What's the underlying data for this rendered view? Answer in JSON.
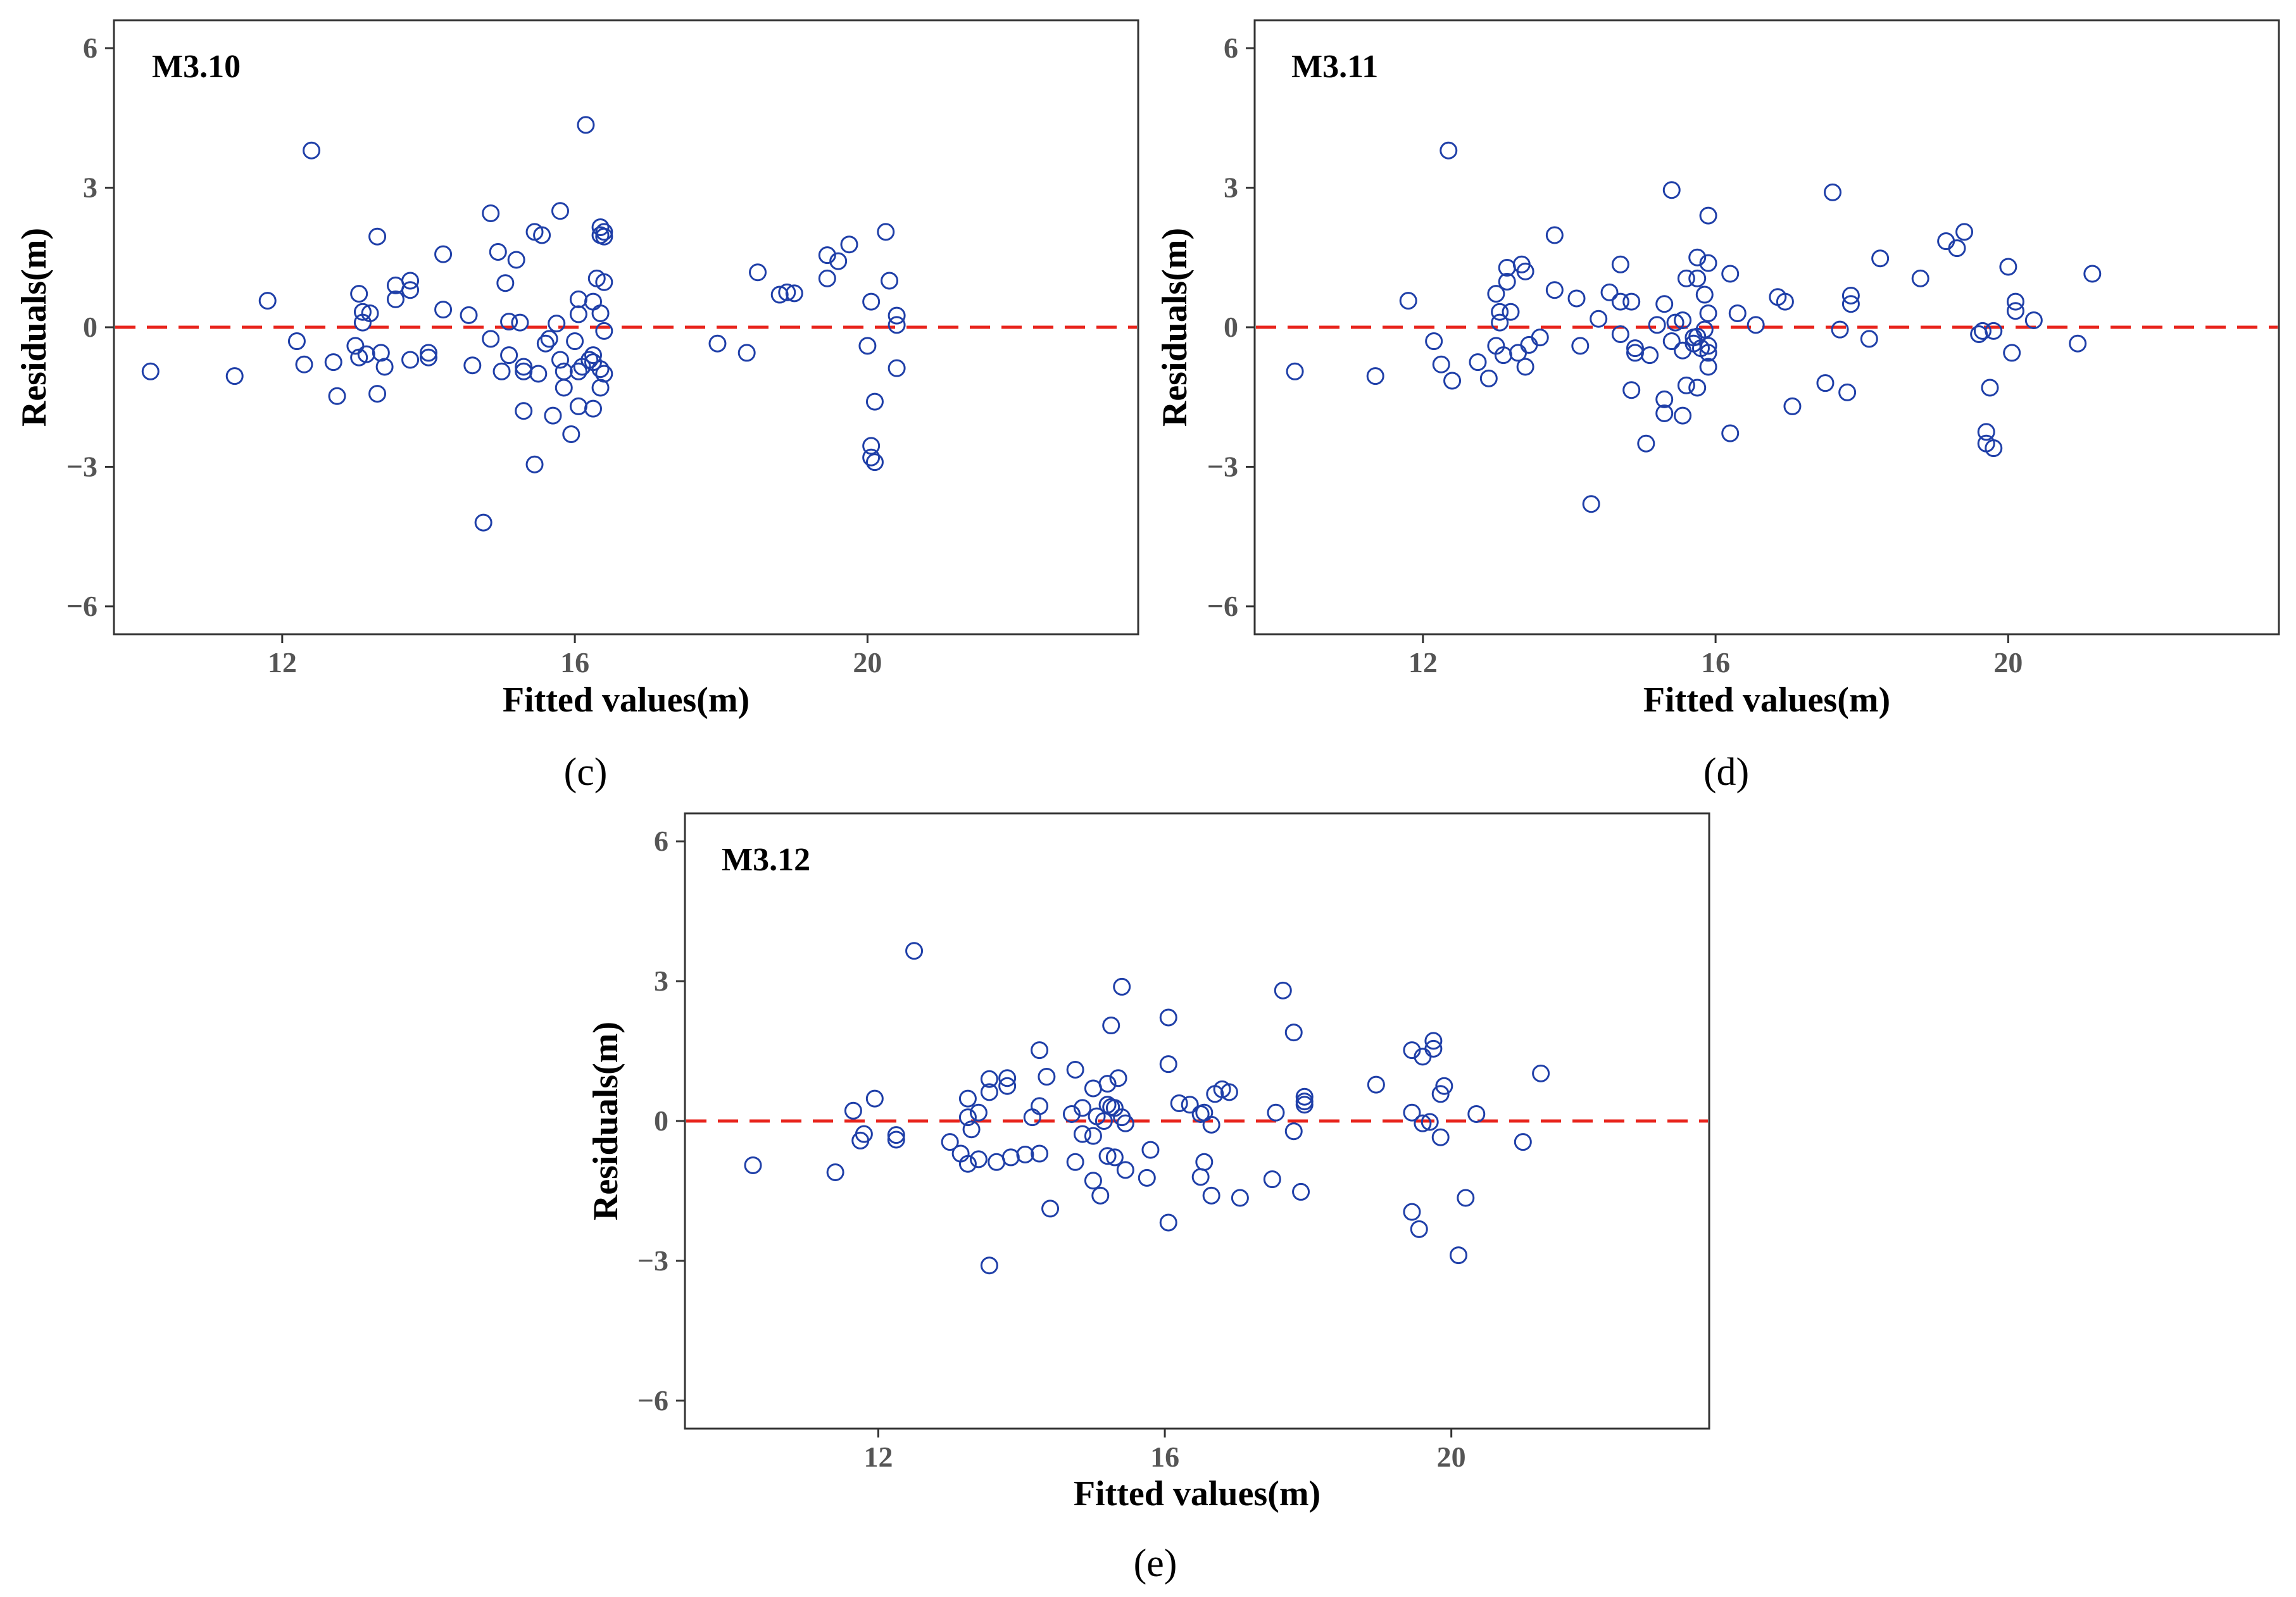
{
  "chart_data": [
    {
      "type": "scatter",
      "title": "M3.10",
      "caption": "(c)",
      "xlabel": "Fitted values(m)",
      "ylabel": "Residuals(m)",
      "xlim": [
        9.7,
        23.7
      ],
      "ylim": [
        -6.6,
        6.6
      ],
      "xticks": [
        12,
        16,
        20
      ],
      "yticks": [
        -6,
        -3,
        0,
        3,
        6
      ],
      "ytick_labels": [
        "−6",
        "−3",
        "0",
        "3",
        "6"
      ],
      "reference_line": {
        "y": 0,
        "color": "#e8241c",
        "style": "dashed"
      },
      "marker": {
        "shape": "open-circle",
        "color": "#1f3fa8"
      },
      "points": [
        [
          10.2,
          -0.95
        ],
        [
          11.35,
          -1.05
        ],
        [
          11.8,
          0.57
        ],
        [
          12.2,
          -0.3
        ],
        [
          12.3,
          -0.8
        ],
        [
          12.4,
          3.8
        ],
        [
          12.7,
          -0.75
        ],
        [
          12.75,
          -1.48
        ],
        [
          13.0,
          -0.4
        ],
        [
          13.05,
          -0.65
        ],
        [
          13.05,
          0.72
        ],
        [
          13.1,
          0.33
        ],
        [
          13.1,
          0.1
        ],
        [
          13.15,
          -0.58
        ],
        [
          13.2,
          0.3
        ],
        [
          13.3,
          1.95
        ],
        [
          13.3,
          -1.43
        ],
        [
          13.35,
          -0.55
        ],
        [
          13.4,
          -0.85
        ],
        [
          13.55,
          0.6
        ],
        [
          13.55,
          0.9
        ],
        [
          13.75,
          0.8
        ],
        [
          13.75,
          1.0
        ],
        [
          13.75,
          -0.7
        ],
        [
          14.0,
          -0.65
        ],
        [
          14.0,
          -0.55
        ],
        [
          14.2,
          1.57
        ],
        [
          14.2,
          0.38
        ],
        [
          14.55,
          0.26
        ],
        [
          14.6,
          -0.82
        ],
        [
          14.75,
          -4.2
        ],
        [
          14.85,
          -0.25
        ],
        [
          14.85,
          2.45
        ],
        [
          14.95,
          1.62
        ],
        [
          15.0,
          -0.95
        ],
        [
          15.05,
          0.95
        ],
        [
          15.1,
          -0.6
        ],
        [
          15.1,
          0.12
        ],
        [
          15.2,
          1.45
        ],
        [
          15.25,
          0.1
        ],
        [
          15.3,
          -0.85
        ],
        [
          15.3,
          -1.8
        ],
        [
          15.3,
          -0.95
        ],
        [
          15.45,
          2.05
        ],
        [
          15.45,
          -2.95
        ],
        [
          15.5,
          -1.0
        ],
        [
          15.55,
          1.98
        ],
        [
          15.6,
          -0.35
        ],
        [
          15.65,
          -0.25
        ],
        [
          15.7,
          -1.9
        ],
        [
          15.75,
          0.08
        ],
        [
          15.8,
          -0.7
        ],
        [
          15.8,
          2.5
        ],
        [
          15.85,
          -1.3
        ],
        [
          15.85,
          -0.95
        ],
        [
          15.95,
          -2.3
        ],
        [
          16.0,
          -0.3
        ],
        [
          16.05,
          -0.95
        ],
        [
          16.05,
          -1.7
        ],
        [
          16.05,
          0.6
        ],
        [
          16.05,
          0.28
        ],
        [
          16.1,
          -0.85
        ],
        [
          16.15,
          4.35
        ],
        [
          16.2,
          -0.7
        ],
        [
          16.25,
          -0.6
        ],
        [
          16.25,
          0.55
        ],
        [
          16.25,
          -0.75
        ],
        [
          16.25,
          -1.75
        ],
        [
          16.3,
          1.05
        ],
        [
          16.35,
          -0.9
        ],
        [
          16.35,
          -1.3
        ],
        [
          16.35,
          0.3
        ],
        [
          16.35,
          1.98
        ],
        [
          16.35,
          2.15
        ],
        [
          16.4,
          0.97
        ],
        [
          16.4,
          -1.0
        ],
        [
          16.4,
          -0.08
        ],
        [
          16.4,
          1.95
        ],
        [
          16.4,
          2.05
        ],
        [
          17.95,
          -0.35
        ],
        [
          18.35,
          -0.55
        ],
        [
          18.5,
          1.18
        ],
        [
          18.8,
          0.7
        ],
        [
          18.9,
          0.75
        ],
        [
          19.0,
          0.73
        ],
        [
          19.45,
          1.55
        ],
        [
          19.45,
          1.05
        ],
        [
          19.6,
          1.42
        ],
        [
          19.75,
          1.78
        ],
        [
          20.0,
          -0.4
        ],
        [
          20.05,
          0.55
        ],
        [
          20.05,
          -2.55
        ],
        [
          20.05,
          -2.8
        ],
        [
          20.1,
          -1.6
        ],
        [
          20.1,
          -2.9
        ],
        [
          20.25,
          2.05
        ],
        [
          20.3,
          1.0
        ],
        [
          20.4,
          -0.88
        ],
        [
          20.4,
          0.25
        ],
        [
          20.4,
          0.05
        ]
      ]
    },
    {
      "type": "scatter",
      "title": "M3.11",
      "caption": "(d)",
      "xlabel": "Fitted values(m)",
      "ylabel": "Residuals(m)",
      "xlim": [
        9.7,
        23.7
      ],
      "ylim": [
        -6.6,
        6.6
      ],
      "xticks": [
        12,
        16,
        20
      ],
      "yticks": [
        -6,
        -3,
        0,
        3,
        6
      ],
      "ytick_labels": [
        "−6",
        "−3",
        "0",
        "3",
        "6"
      ],
      "reference_line": {
        "y": 0,
        "color": "#e8241c",
        "style": "dashed"
      },
      "marker": {
        "shape": "open-circle",
        "color": "#1f3fa8"
      },
      "points": [
        [
          10.25,
          -0.95
        ],
        [
          11.35,
          -1.05
        ],
        [
          11.8,
          0.57
        ],
        [
          12.15,
          -0.3
        ],
        [
          12.25,
          -0.8
        ],
        [
          12.35,
          3.8
        ],
        [
          12.4,
          -1.15
        ],
        [
          12.75,
          -0.75
        ],
        [
          12.9,
          -1.1
        ],
        [
          13.0,
          -0.4
        ],
        [
          13.0,
          0.72
        ],
        [
          13.05,
          0.33
        ],
        [
          13.05,
          0.1
        ],
        [
          13.1,
          -0.6
        ],
        [
          13.15,
          1.28
        ],
        [
          13.15,
          0.98
        ],
        [
          13.2,
          0.33
        ],
        [
          13.3,
          -0.55
        ],
        [
          13.35,
          1.35
        ],
        [
          13.4,
          1.2
        ],
        [
          13.4,
          -0.85
        ],
        [
          13.45,
          -0.38
        ],
        [
          13.6,
          -0.22
        ],
        [
          13.8,
          0.8
        ],
        [
          13.8,
          1.98
        ],
        [
          14.1,
          0.62
        ],
        [
          14.15,
          -0.4
        ],
        [
          14.3,
          -3.8
        ],
        [
          14.4,
          0.18
        ],
        [
          14.55,
          0.75
        ],
        [
          14.7,
          1.35
        ],
        [
          14.7,
          0.55
        ],
        [
          14.7,
          -0.15
        ],
        [
          14.85,
          0.55
        ],
        [
          14.85,
          -1.35
        ],
        [
          14.9,
          -0.45
        ],
        [
          14.9,
          -0.55
        ],
        [
          15.05,
          -2.5
        ],
        [
          15.1,
          -0.6
        ],
        [
          15.2,
          0.05
        ],
        [
          15.3,
          -1.55
        ],
        [
          15.3,
          -1.85
        ],
        [
          15.3,
          0.5
        ],
        [
          15.4,
          2.95
        ],
        [
          15.4,
          -0.3
        ],
        [
          15.45,
          0.1
        ],
        [
          15.55,
          0.15
        ],
        [
          15.55,
          -0.5
        ],
        [
          15.55,
          -1.9
        ],
        [
          15.6,
          1.05
        ],
        [
          15.6,
          -1.25
        ],
        [
          15.7,
          -0.35
        ],
        [
          15.7,
          -0.22
        ],
        [
          15.75,
          1.05
        ],
        [
          15.75,
          1.5
        ],
        [
          15.75,
          -0.2
        ],
        [
          15.75,
          -1.3
        ],
        [
          15.8,
          -0.45
        ],
        [
          15.85,
          -0.05
        ],
        [
          15.85,
          0.7
        ],
        [
          15.9,
          2.4
        ],
        [
          15.9,
          0.3
        ],
        [
          15.9,
          -0.4
        ],
        [
          15.9,
          -0.55
        ],
        [
          15.9,
          -0.85
        ],
        [
          15.9,
          1.38
        ],
        [
          16.2,
          1.15
        ],
        [
          16.2,
          -2.28
        ],
        [
          16.3,
          0.3
        ],
        [
          16.55,
          0.05
        ],
        [
          16.85,
          0.65
        ],
        [
          16.95,
          0.55
        ],
        [
          17.05,
          -1.7
        ],
        [
          17.5,
          -1.2
        ],
        [
          17.6,
          2.9
        ],
        [
          17.7,
          -0.05
        ],
        [
          17.8,
          -1.4
        ],
        [
          17.85,
          0.68
        ],
        [
          17.85,
          0.5
        ],
        [
          18.1,
          -0.25
        ],
        [
          18.25,
          1.48
        ],
        [
          18.8,
          1.05
        ],
        [
          19.15,
          1.85
        ],
        [
          19.3,
          1.7
        ],
        [
          19.4,
          2.05
        ],
        [
          19.6,
          -0.15
        ],
        [
          19.65,
          -0.08
        ],
        [
          19.7,
          -2.25
        ],
        [
          19.7,
          -2.5
        ],
        [
          19.75,
          -1.3
        ],
        [
          19.8,
          -0.08
        ],
        [
          19.8,
          -2.6
        ],
        [
          20.0,
          1.3
        ],
        [
          20.05,
          -0.55
        ],
        [
          20.1,
          0.35
        ],
        [
          20.1,
          0.55
        ],
        [
          20.35,
          0.15
        ],
        [
          20.95,
          -0.35
        ],
        [
          21.15,
          1.15
        ]
      ]
    },
    {
      "type": "scatter",
      "title": "M3.12",
      "caption": "(e)",
      "xlabel": "Fitted values(m)",
      "ylabel": "Residuals(m)",
      "xlim": [
        9.3,
        23.6
      ],
      "ylim": [
        -6.6,
        6.6
      ],
      "xticks": [
        12,
        16,
        20
      ],
      "yticks": [
        -6,
        -3,
        0,
        3,
        6
      ],
      "ytick_labels": [
        "−6",
        "−3",
        "0",
        "3",
        "6"
      ],
      "reference_line": {
        "y": 0,
        "color": "#e8241c",
        "style": "dashed"
      },
      "marker": {
        "shape": "open-circle",
        "color": "#1f3fa8"
      },
      "points": [
        [
          10.25,
          -0.95
        ],
        [
          11.4,
          -1.1
        ],
        [
          11.65,
          0.22
        ],
        [
          11.75,
          -0.42
        ],
        [
          11.8,
          -0.28
        ],
        [
          11.95,
          0.48
        ],
        [
          12.25,
          -0.3
        ],
        [
          12.25,
          -0.4
        ],
        [
          12.5,
          3.65
        ],
        [
          13.0,
          -0.45
        ],
        [
          13.15,
          -0.7
        ],
        [
          13.25,
          -0.92
        ],
        [
          13.25,
          0.08
        ],
        [
          13.25,
          0.48
        ],
        [
          13.3,
          -0.18
        ],
        [
          13.4,
          -0.82
        ],
        [
          13.4,
          0.18
        ],
        [
          13.55,
          0.62
        ],
        [
          13.55,
          0.9
        ],
        [
          13.55,
          -3.1
        ],
        [
          13.65,
          -0.88
        ],
        [
          13.8,
          0.92
        ],
        [
          13.8,
          0.75
        ],
        [
          13.85,
          -0.78
        ],
        [
          14.05,
          -0.72
        ],
        [
          14.15,
          0.08
        ],
        [
          14.25,
          -0.7
        ],
        [
          14.25,
          0.32
        ],
        [
          14.25,
          1.52
        ],
        [
          14.35,
          0.95
        ],
        [
          14.4,
          -1.88
        ],
        [
          14.7,
          0.15
        ],
        [
          14.75,
          1.1
        ],
        [
          14.75,
          -0.88
        ],
        [
          14.85,
          0.28
        ],
        [
          14.85,
          -0.28
        ],
        [
          15.0,
          -0.32
        ],
        [
          15.0,
          -1.28
        ],
        [
          15.0,
          0.7
        ],
        [
          15.05,
          0.1
        ],
        [
          15.1,
          -1.6
        ],
        [
          15.15,
          0.0
        ],
        [
          15.2,
          0.35
        ],
        [
          15.2,
          0.8
        ],
        [
          15.2,
          -0.75
        ],
        [
          15.25,
          0.3
        ],
        [
          15.25,
          2.05
        ],
        [
          15.3,
          0.28
        ],
        [
          15.3,
          -0.78
        ],
        [
          15.35,
          0.92
        ],
        [
          15.4,
          0.08
        ],
        [
          15.4,
          2.88
        ],
        [
          15.45,
          -0.05
        ],
        [
          15.45,
          -1.05
        ],
        [
          15.75,
          -1.22
        ],
        [
          15.8,
          -0.62
        ],
        [
          16.05,
          2.22
        ],
        [
          16.05,
          1.22
        ],
        [
          16.05,
          -2.18
        ],
        [
          16.2,
          0.38
        ],
        [
          16.35,
          0.35
        ],
        [
          16.5,
          -1.2
        ],
        [
          16.5,
          0.15
        ],
        [
          16.55,
          -0.88
        ],
        [
          16.55,
          0.18
        ],
        [
          16.65,
          -1.6
        ],
        [
          16.65,
          -0.08
        ],
        [
          16.7,
          0.58
        ],
        [
          16.8,
          0.68
        ],
        [
          16.9,
          0.62
        ],
        [
          17.05,
          -1.65
        ],
        [
          17.5,
          -1.25
        ],
        [
          17.55,
          0.18
        ],
        [
          17.65,
          2.8
        ],
        [
          17.8,
          1.9
        ],
        [
          17.8,
          -0.22
        ],
        [
          17.9,
          -1.52
        ],
        [
          17.95,
          0.35
        ],
        [
          17.95,
          0.52
        ],
        [
          17.95,
          0.42
        ],
        [
          18.95,
          0.78
        ],
        [
          19.45,
          1.52
        ],
        [
          19.45,
          0.18
        ],
        [
          19.45,
          -1.95
        ],
        [
          19.55,
          -2.32
        ],
        [
          19.6,
          -0.05
        ],
        [
          19.6,
          1.38
        ],
        [
          19.7,
          -0.02
        ],
        [
          19.75,
          1.72
        ],
        [
          19.75,
          1.55
        ],
        [
          19.85,
          -0.35
        ],
        [
          19.85,
          0.58
        ],
        [
          19.9,
          0.75
        ],
        [
          20.1,
          -2.88
        ],
        [
          20.2,
          -1.65
        ],
        [
          20.35,
          0.15
        ],
        [
          21.0,
          -0.45
        ],
        [
          21.25,
          1.02
        ]
      ]
    }
  ]
}
